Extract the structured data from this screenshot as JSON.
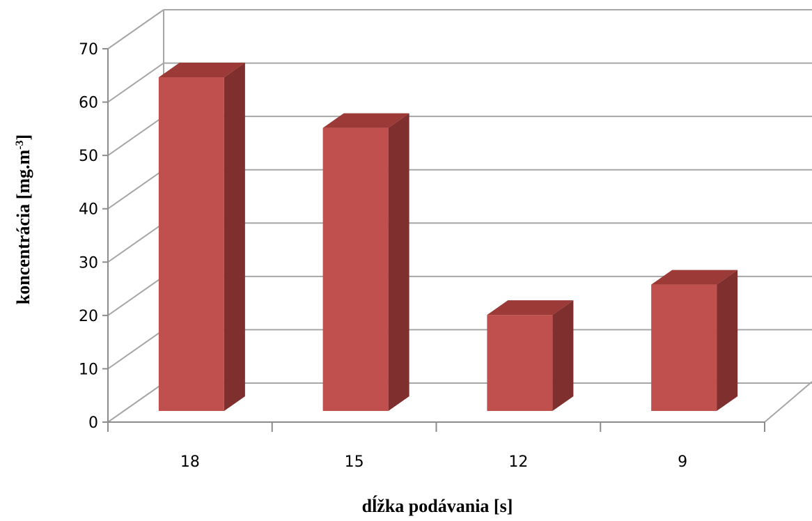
{
  "chart_data": {
    "type": "bar",
    "categories": [
      "18",
      "15",
      "12",
      "9"
    ],
    "values": [
      66,
      56,
      19,
      25
    ],
    "xlabel": "dĺžka podávania [s]",
    "ylabel_main": "koncentrácia [mg.m",
    "ylabel_sup": "-3",
    "ylabel_close": "]",
    "ylim": [
      0,
      70
    ],
    "yticks": [
      0,
      10,
      20,
      30,
      40,
      50,
      60,
      70
    ],
    "grid": true,
    "legend": "none",
    "bar_front_color": "#C0504D",
    "bar_top_color": "#9C3A37",
    "bar_side_color": "#7F2F2E",
    "grid_color": "#A6A6A6"
  }
}
